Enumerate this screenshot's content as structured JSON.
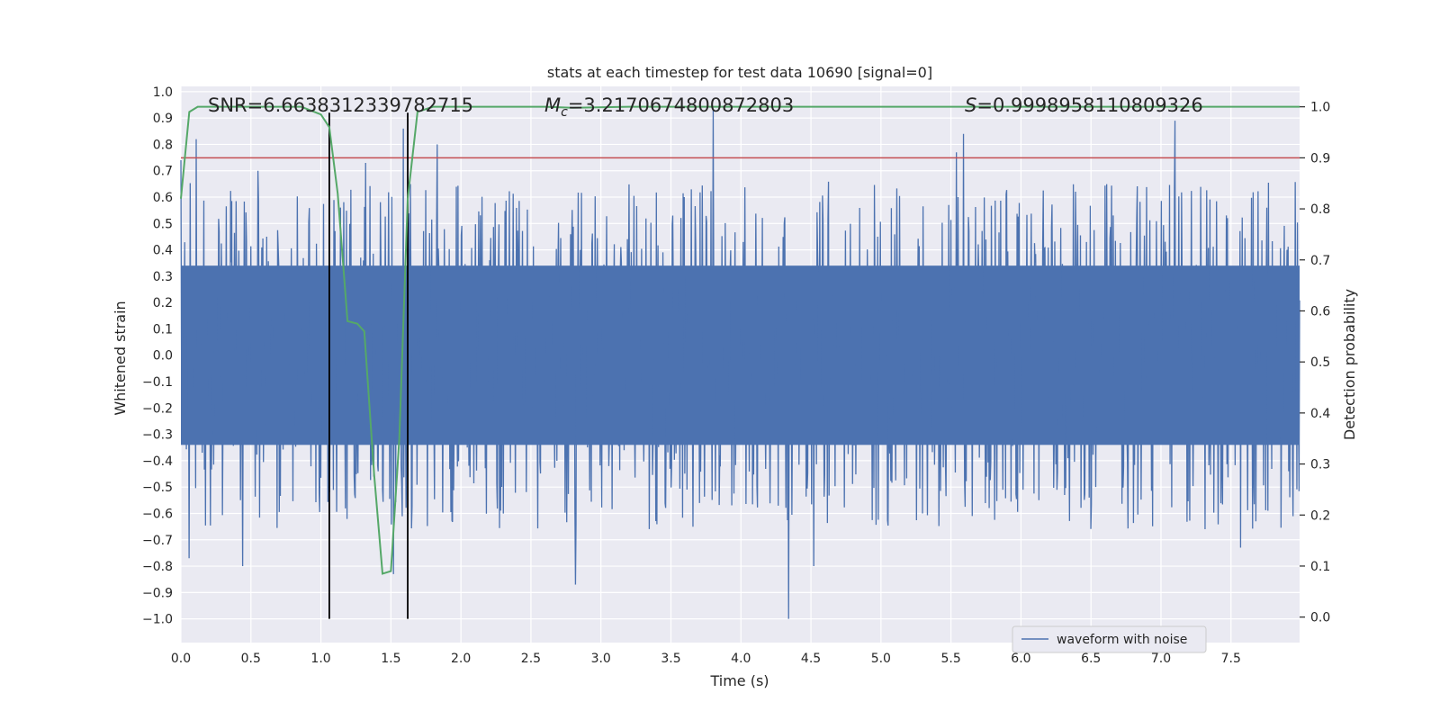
{
  "chart_data": {
    "type": "line",
    "title": "stats at each timestep for test data 10690 [signal=0]",
    "xlabel": "Time (s)",
    "ylabel": "Whitened strain",
    "ylabel_right": "Detection probability",
    "xlim": [
      0.0,
      7.99
    ],
    "ylim": [
      -1.09,
      1.02
    ],
    "ylim_right": [
      -0.05,
      1.04
    ],
    "x_ticks": [
      0.0,
      0.5,
      1.0,
      1.5,
      2.0,
      2.5,
      3.0,
      3.5,
      4.0,
      4.5,
      5.0,
      5.5,
      6.0,
      6.5,
      7.0,
      7.5
    ],
    "x_tick_labels": [
      "0.0",
      "0.5",
      "1.0",
      "1.5",
      "2.0",
      "2.5",
      "3.0",
      "3.5",
      "4.0",
      "4.5",
      "5.0",
      "5.5",
      "6.0",
      "6.5",
      "7.0",
      "7.5"
    ],
    "y_ticks": [
      1.0,
      0.9,
      0.8,
      0.7,
      0.6,
      0.5,
      0.4,
      0.3,
      0.2,
      0.1,
      0.0,
      -0.1,
      -0.2,
      -0.3,
      -0.4,
      -0.5,
      -0.6,
      -0.7,
      -0.8,
      -0.9,
      -1.0
    ],
    "y_tick_labels": [
      "1.0",
      "0.9",
      "0.8",
      "0.7",
      "0.6",
      "0.5",
      "0.4",
      "0.3",
      "0.2",
      "0.1",
      "0.0",
      "−0.1",
      "−0.2",
      "−0.3",
      "−0.4",
      "−0.5",
      "−0.6",
      "−0.7",
      "−0.8",
      "−0.9",
      "−1.0"
    ],
    "y_ticks_right": [
      1.0,
      0.9,
      0.8,
      0.7,
      0.6,
      0.5,
      0.4,
      0.3,
      0.2,
      0.1,
      0.0
    ],
    "y_tick_labels_right": [
      "1.0",
      "0.9",
      "0.8",
      "0.7",
      "0.6",
      "0.5",
      "0.4",
      "0.3",
      "0.2",
      "0.1",
      "0.0"
    ],
    "annotations": {
      "snr": "SNR=6.663831233978271​5",
      "mc_symbol": "M",
      "mc_sub": "c",
      "mc_value": "=3.2170674800872803",
      "s_symbol": "S",
      "s_value": "=0.9998958110809326"
    },
    "vertical_lines": [
      1.06,
      1.62
    ],
    "threshold_right": 0.9,
    "legend": {
      "label": "waveform with noise",
      "position": "lower-right"
    },
    "series": [
      {
        "name": "waveform with noise",
        "axis": "left",
        "color": "#4c72b0",
        "n_samples": 2048,
        "seed": 10690,
        "core_amplitude": 0.34,
        "spikes": [
          {
            "x": 0.0,
            "y": 0.74
          },
          {
            "x": 0.11,
            "y": 0.82
          },
          {
            "x": 0.06,
            "y": -0.77
          },
          {
            "x": 0.55,
            "y": 0.7
          },
          {
            "x": 0.44,
            "y": -0.8
          },
          {
            "x": 1.32,
            "y": 0.73
          },
          {
            "x": 1.59,
            "y": 0.86
          },
          {
            "x": 1.52,
            "y": -0.83
          },
          {
            "x": 1.83,
            "y": 0.8
          },
          {
            "x": 2.82,
            "y": -0.87
          },
          {
            "x": 3.8,
            "y": 0.93
          },
          {
            "x": 4.34,
            "y": -1.0
          },
          {
            "x": 4.52,
            "y": -0.8
          },
          {
            "x": 5.59,
            "y": 0.84
          },
          {
            "x": 5.54,
            "y": 0.77
          },
          {
            "x": 7.1,
            "y": 0.89
          },
          {
            "x": 7.57,
            "y": -0.73
          }
        ]
      },
      {
        "name": "detection probability",
        "axis": "right",
        "color": "#55a868",
        "x": [
          0.0,
          0.06,
          0.12,
          0.5,
          0.86,
          1.0,
          1.06,
          1.12,
          1.19,
          1.26,
          1.31,
          1.38,
          1.44,
          1.5,
          1.56,
          1.62,
          1.69,
          1.8,
          2.6,
          2.8,
          3.2,
          4.5,
          6.0,
          7.99
        ],
        "values": [
          0.82,
          0.99,
          1.0,
          1.0,
          1.0,
          0.985,
          0.96,
          0.83,
          0.58,
          0.575,
          0.56,
          0.28,
          0.085,
          0.09,
          0.35,
          0.82,
          0.99,
          1.0,
          1.0,
          0.998,
          1.0,
          1.0,
          1.0,
          1.0
        ]
      }
    ]
  }
}
